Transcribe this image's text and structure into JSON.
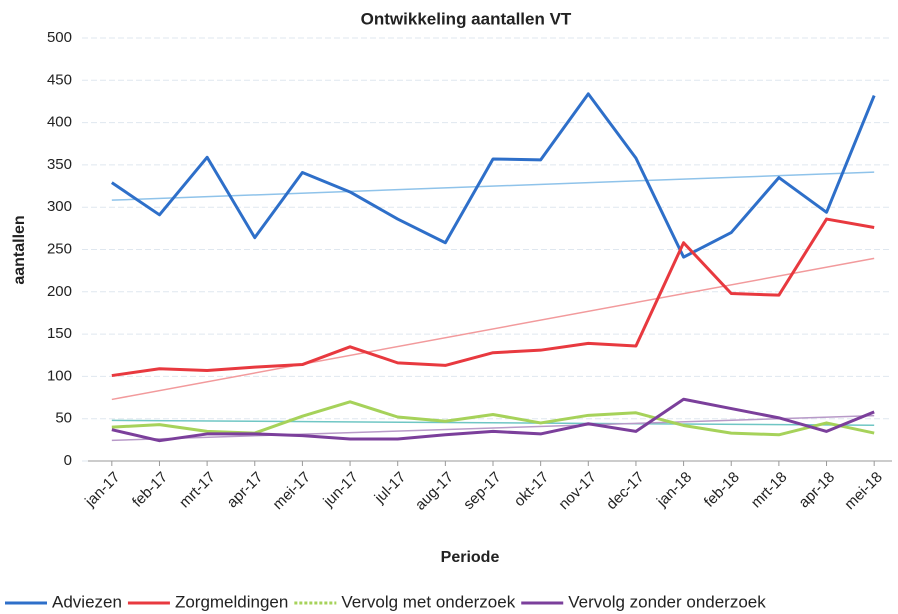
{
  "chart_data": {
    "type": "line",
    "title": "Ontwikkeling aantallen VT",
    "x_label": "Periode",
    "y_label": "aantallen",
    "categories": [
      "jan-17",
      "feb-17",
      "mrt-17",
      "apr-17",
      "mei-17",
      "jun-17",
      "jul-17",
      "aug-17",
      "sep-17",
      "okt-17",
      "nov-17",
      "dec-17",
      "jan-18",
      "feb-18",
      "mrt-18",
      "apr-18",
      "mei-18"
    ],
    "series": [
      {
        "name": "Adviezen",
        "color": "#2e6fc9",
        "trend_color": "#8fc3ea",
        "values": [
          329,
          291,
          359,
          264,
          341,
          318,
          286,
          258,
          357,
          356,
          434,
          358,
          241,
          270,
          335,
          294,
          432
        ]
      },
      {
        "name": "Zorgmeldingen",
        "color": "#e8393f",
        "trend_color": "#f29a9c",
        "values": [
          101,
          109,
          107,
          111,
          114,
          135,
          116,
          113,
          128,
          131,
          139,
          136,
          258,
          198,
          196,
          286,
          276
        ]
      },
      {
        "name": "Vervolg met onderzoek",
        "color": "#a6d25a",
        "trend_color": "#6fc6c4",
        "values": [
          40,
          43,
          35,
          33,
          53,
          70,
          52,
          47,
          55,
          45,
          54,
          57,
          42,
          33,
          31,
          45,
          33
        ]
      },
      {
        "name": "Vervolg zonder onderzoek",
        "color": "#7b3f9b",
        "trend_color": "#b89ac8",
        "values": [
          37,
          24,
          32,
          32,
          30,
          26,
          26,
          31,
          35,
          32,
          44,
          35,
          73,
          62,
          51,
          35,
          58
        ]
      }
    ],
    "trendline": true,
    "ylim": [
      0,
      500
    ],
    "yticks": [
      0,
      50,
      100,
      150,
      200,
      250,
      300,
      350,
      400,
      450,
      500
    ],
    "grid": true,
    "legend": "bottom"
  }
}
